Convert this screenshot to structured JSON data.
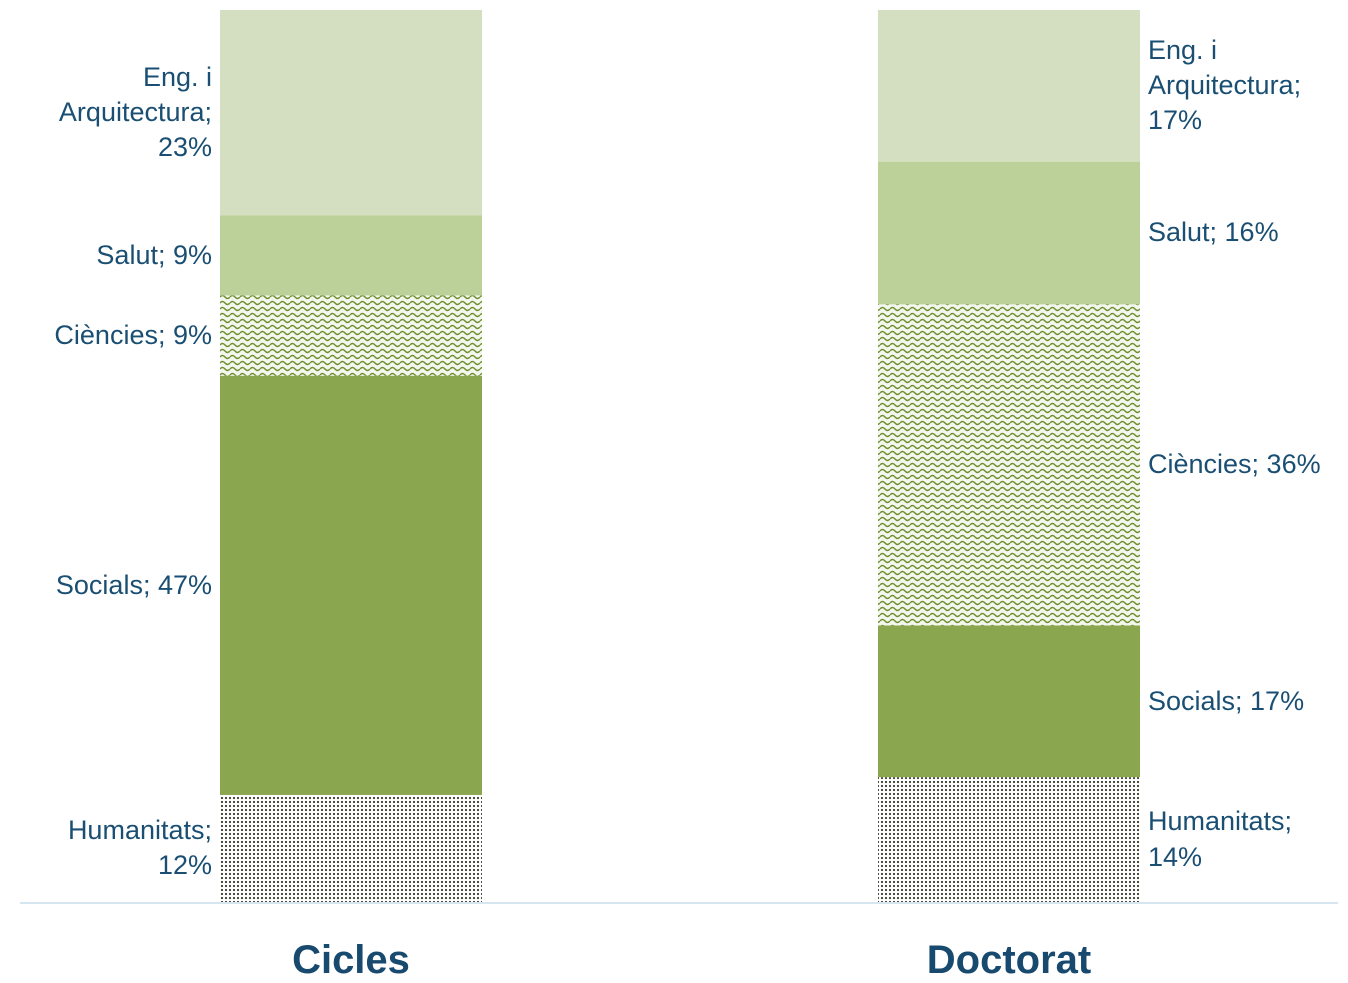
{
  "chart_data": {
    "type": "stacked_bar",
    "categories": [
      "Cicles",
      "Doctorat"
    ],
    "ylim": [
      0,
      100
    ],
    "series": [
      {
        "name": "Humanitats",
        "color": "#3a3a2a",
        "pattern": "dots",
        "values": [
          12,
          14
        ],
        "value_labels": [
          "Humanitats; 12%",
          "Humanitats; 14%"
        ]
      },
      {
        "name": "Socials",
        "color": "#8aa64f",
        "values": [
          47,
          17
        ],
        "value_labels": [
          "Socials; 47%",
          "Socials; 17%"
        ]
      },
      {
        "name": "Ciències",
        "color": "#6f8f2f",
        "pattern": "wave",
        "values": [
          9,
          36
        ],
        "value_labels": [
          "Ciències; 9%",
          "Ciències; 36%"
        ]
      },
      {
        "name": "Salut",
        "color": "#bcd09a",
        "values": [
          9,
          16
        ],
        "value_labels": [
          "Salut; 9%",
          "Salut; 16%"
        ]
      },
      {
        "name": "Eng. i Arquitectura",
        "color": "#d3dfc0",
        "values": [
          23,
          17
        ],
        "value_labels": [
          "Eng. i Arquitectura; 23%",
          "Eng. i Arquitectura; 17%"
        ]
      }
    ]
  }
}
